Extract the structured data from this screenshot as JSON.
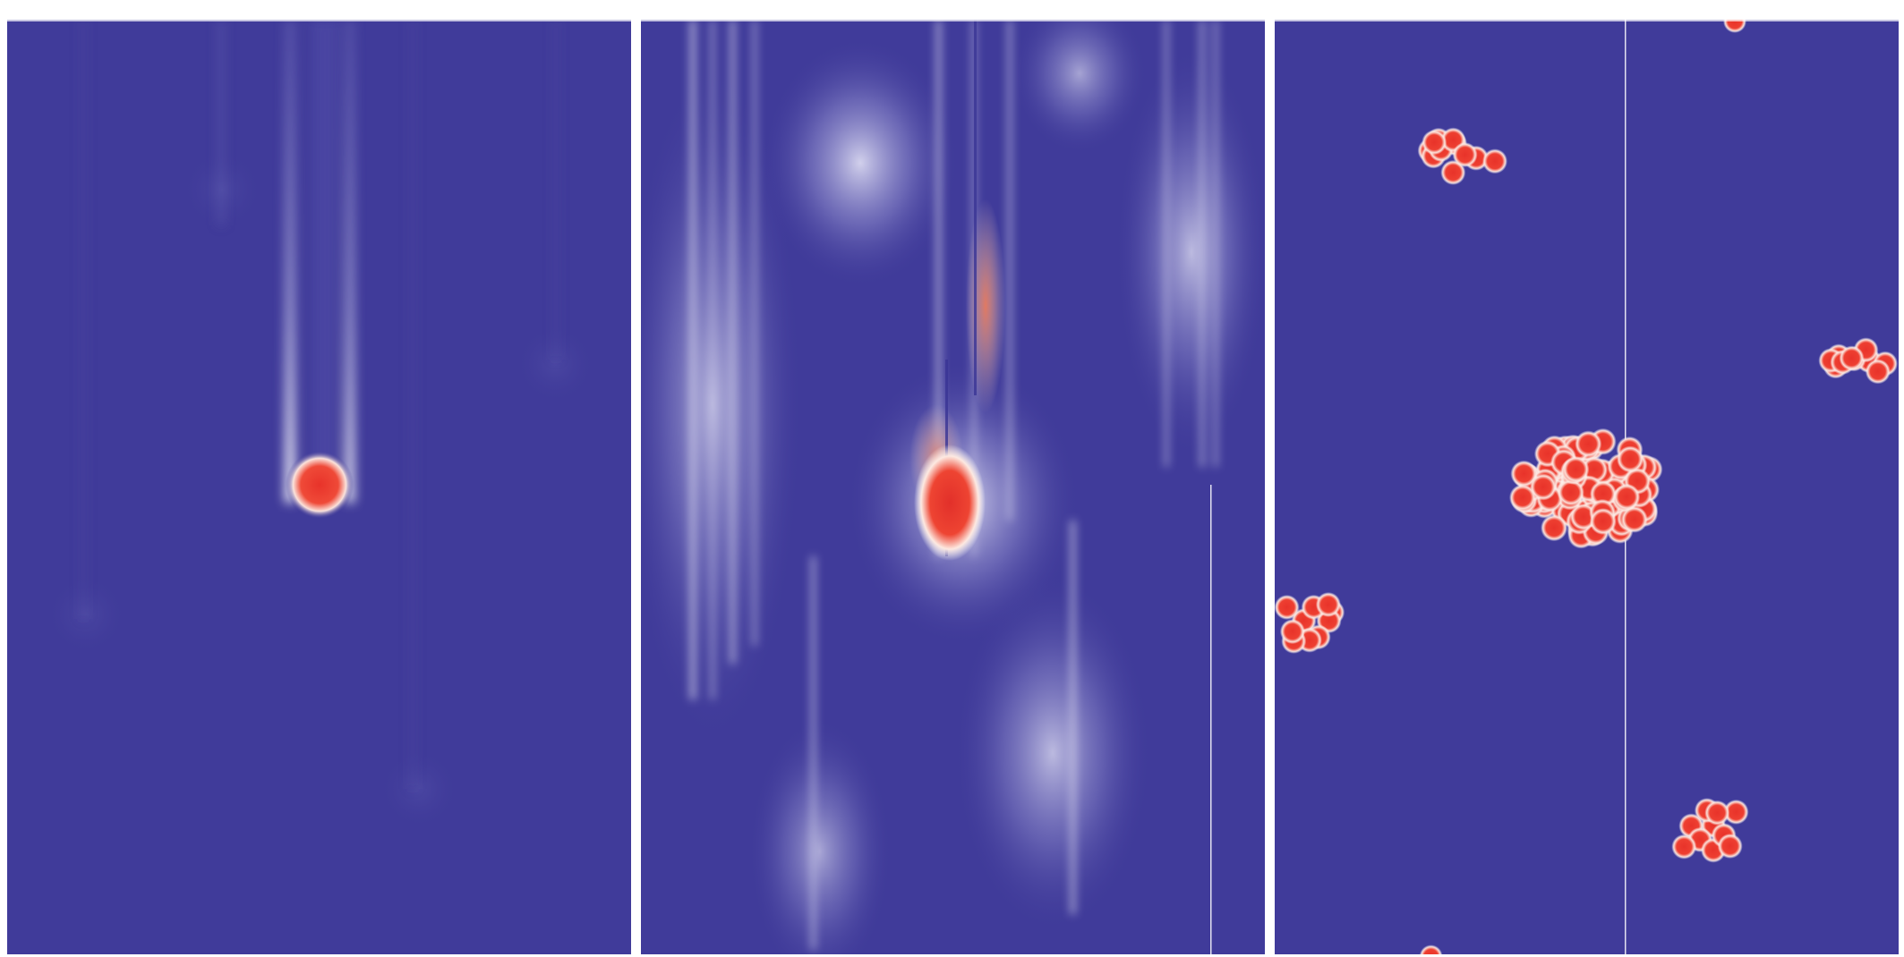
{
  "palette": {
    "background": "#ffffff",
    "field": "#403b9a",
    "hot": "#ef3b2c",
    "glow": "#e6e6f2"
  },
  "panels": [
    {
      "name": "left-panel"
    },
    {
      "name": "middle-panel"
    },
    {
      "name": "right-panel"
    }
  ]
}
